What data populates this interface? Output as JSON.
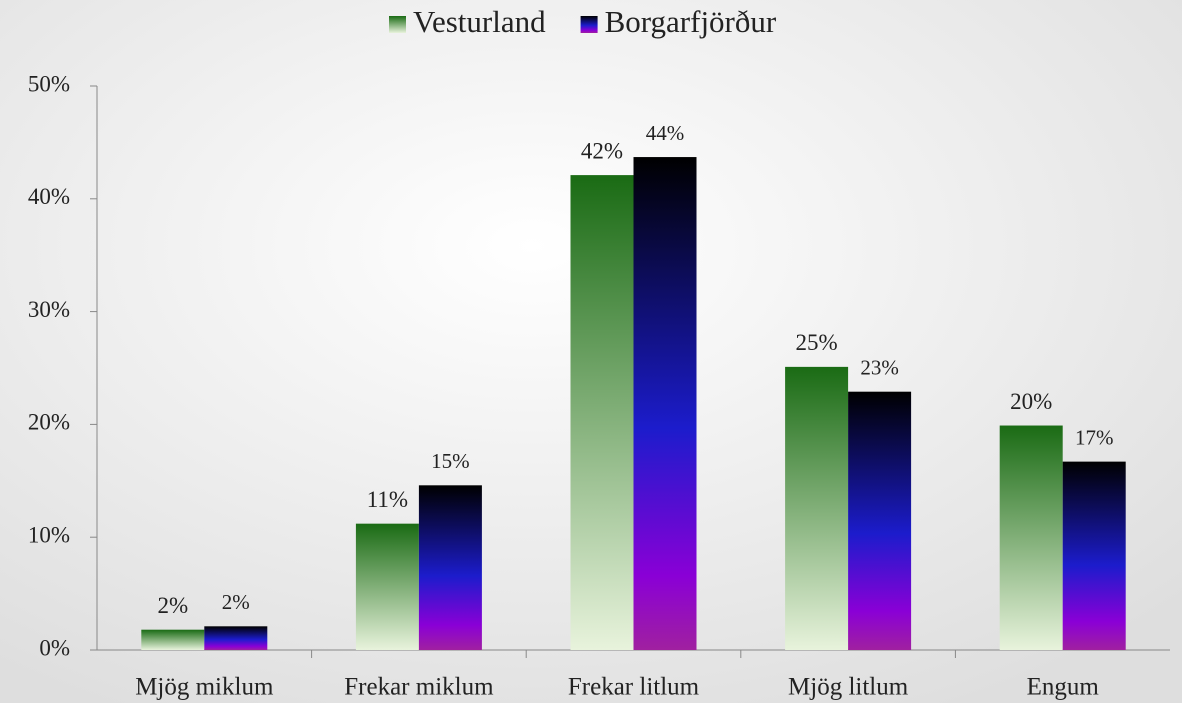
{
  "chart_data": {
    "type": "bar",
    "categories": [
      "Mjög miklum",
      "Frekar miklum",
      "Frekar litlum",
      "Mjög litlum",
      "Engum"
    ],
    "series": [
      {
        "name": "Vesturland",
        "color": "#1a6b14",
        "values": [
          1.8,
          11.2,
          42.1,
          25.1,
          19.9
        ],
        "value_labels": [
          "2%",
          "11%",
          "42%",
          "25%",
          "20%"
        ]
      },
      {
        "name": "Borgarfjörður",
        "color": "#1c1ccc",
        "values": [
          2.1,
          14.6,
          43.7,
          22.9,
          16.7
        ],
        "value_labels": [
          "2%",
          "15%",
          "44%",
          "23%",
          "17%"
        ]
      }
    ],
    "ylim": [
      0,
      50
    ],
    "yticks": [
      {
        "value": 0,
        "label": "0%"
      },
      {
        "value": 10,
        "label": "10%"
      },
      {
        "value": 20,
        "label": "20%"
      },
      {
        "value": 30,
        "label": "30%"
      },
      {
        "value": 40,
        "label": "40%"
      },
      {
        "value": 50,
        "label": "50%"
      }
    ],
    "legend": "top"
  }
}
